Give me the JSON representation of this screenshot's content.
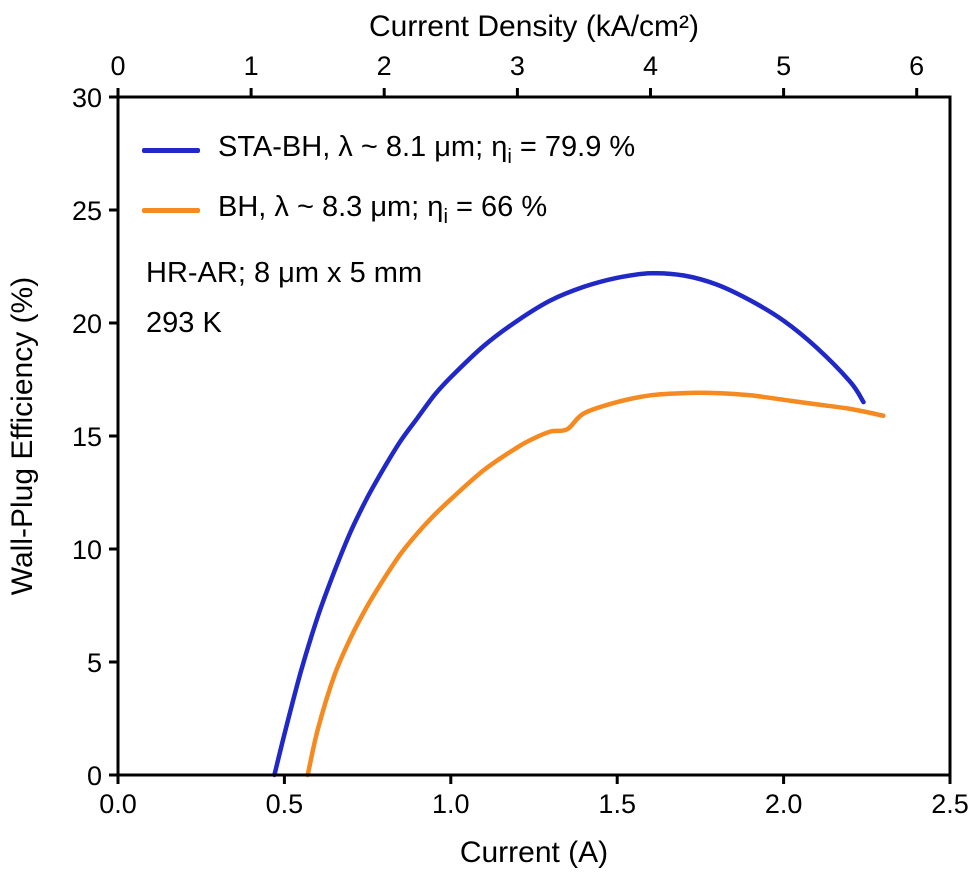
{
  "chart_data": {
    "type": "line",
    "title": "",
    "grid": false,
    "axes": {
      "bottom": {
        "label": "Current (A)",
        "min": 0,
        "max": 2.5,
        "ticks": [
          0,
          0.5,
          1.0,
          1.5,
          2.0,
          2.5
        ],
        "tick_labels": [
          "0.0",
          "0.5",
          "1.0",
          "1.5",
          "2.0",
          "2.5"
        ]
      },
      "top": {
        "label": "Current Density (kA/cm²)",
        "min": 0,
        "max": 6.25,
        "ticks": [
          0,
          1,
          2,
          3,
          4,
          5,
          6
        ],
        "tick_labels": [
          "0",
          "1",
          "2",
          "3",
          "4",
          "5",
          "6"
        ]
      },
      "left": {
        "label": "Wall-Plug Efficiency (%)",
        "min": 0,
        "max": 30,
        "ticks": [
          0,
          5,
          10,
          15,
          20,
          25,
          30
        ],
        "tick_labels": [
          "0",
          "5",
          "10",
          "15",
          "20",
          "25",
          "30"
        ]
      }
    },
    "series": [
      {
        "name": "STA-BH",
        "color": "#2028c8",
        "x": [
          0.47,
          0.5,
          0.55,
          0.6,
          0.65,
          0.7,
          0.75,
          0.8,
          0.85,
          0.9,
          0.95,
          1.0,
          1.1,
          1.2,
          1.3,
          1.4,
          1.5,
          1.6,
          1.7,
          1.8,
          1.9,
          2.0,
          2.1,
          2.2,
          2.24
        ],
        "y": [
          0,
          1.8,
          4.6,
          7.0,
          9.0,
          10.8,
          12.3,
          13.6,
          14.8,
          15.8,
          16.8,
          17.6,
          19.0,
          20.1,
          21.0,
          21.6,
          22.0,
          22.2,
          22.1,
          21.7,
          21.0,
          20.1,
          18.9,
          17.4,
          16.5
        ]
      },
      {
        "name": "BH",
        "color": "#f58a20",
        "x": [
          0.57,
          0.6,
          0.65,
          0.7,
          0.75,
          0.8,
          0.85,
          0.9,
          0.95,
          1.0,
          1.1,
          1.2,
          1.25,
          1.3,
          1.35,
          1.4,
          1.5,
          1.6,
          1.7,
          1.8,
          1.9,
          2.0,
          2.1,
          2.2,
          2.3
        ],
        "y": [
          0,
          2.0,
          4.4,
          6.1,
          7.5,
          8.7,
          9.8,
          10.7,
          11.5,
          12.2,
          13.5,
          14.5,
          14.9,
          15.2,
          15.3,
          16.0,
          16.5,
          16.8,
          16.9,
          16.9,
          16.8,
          16.6,
          16.4,
          16.2,
          15.9
        ]
      }
    ],
    "legend": {
      "position": "top-left",
      "items": [
        {
          "pre": "STA-BH, λ ~ 8.1 μm; η",
          "sub": "i",
          "post": " = 79.9 %"
        },
        {
          "pre": "BH, λ ~ 8.3 μm; η",
          "sub": "i",
          "post": " = 66 %"
        }
      ]
    },
    "annotations": [
      "HR-AR; 8 μm x 5 mm",
      "293 K"
    ]
  }
}
